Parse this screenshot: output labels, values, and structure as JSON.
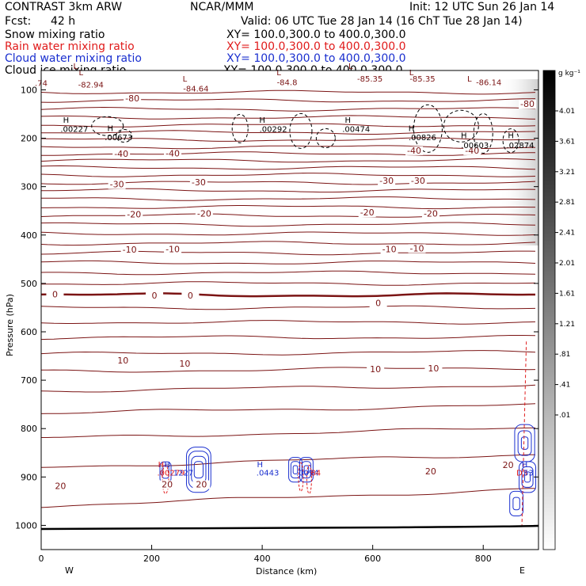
{
  "header": {
    "model": "CONTRAST  3km ARW",
    "org": "NCAR/MMM",
    "init": "Init: 12 UTC Sun 26 Jan 14",
    "fcst_label": "Fcst:",
    "fcst_value": "42 h",
    "valid": "Valid: 06 UTC Tue 28 Jan 14 (16 ChT Tue 28 Jan 14)"
  },
  "fields": [
    {
      "name": "Snow mixing ratio",
      "xy": "XY= 100.0,300.0 to 400.0,300.0",
      "color": "#000000"
    },
    {
      "name": "Rain water mixing ratio",
      "xy": "XY= 100.0,300.0 to 400.0,300.0",
      "color": "#e01b1b"
    },
    {
      "name": "Cloud water mixing ratio",
      "xy": "XY= 100.0,300.0 to 400.0,300.0",
      "color": "#1a2fcf"
    },
    {
      "name": "Cloud ice mixing ratio",
      "xy": "XY= 100.0,300.0 to 400.0,300.0",
      "color": "#000000"
    }
  ],
  "colors": {
    "temp": "#7b1414",
    "rain": "#e01b1b",
    "cloud": "#1a2fcf",
    "snow": "#000000"
  },
  "chart_data": {
    "type": "contour",
    "xlabel": "Distance (km)",
    "ylabel": "Pressure (hPa)",
    "xlim": [
      0,
      900
    ],
    "ylim": [
      1050,
      60
    ],
    "x_ticks": [
      "0",
      "200",
      "400",
      "600",
      "800"
    ],
    "y_ticks": [
      "100",
      "200",
      "300",
      "400",
      "500",
      "600",
      "700",
      "800",
      "900",
      "1000"
    ],
    "x_end_labels": {
      "left": "W",
      "right": "E"
    },
    "colorbar": {
      "unit": "g kg⁻¹",
      "labels": [
        "4.01",
        "3.61",
        "3.21",
        "2.81",
        "2.41",
        "2.01",
        "1.61",
        "1.21",
        ".81",
        ".41",
        ".01"
      ]
    },
    "temperature_contours": {
      "units": "degC",
      "labels": [
        {
          "text": "-80",
          "x": 165,
          "p": 122
        },
        {
          "text": "-80",
          "x": 880,
          "p": 134
        },
        {
          "text": "-40",
          "x": 145,
          "p": 237
        },
        {
          "text": "-40",
          "x": 238,
          "p": 236
        },
        {
          "text": "-40",
          "x": 675,
          "p": 230
        },
        {
          "text": "-40",
          "x": 780,
          "p": 230
        },
        {
          "text": "-30",
          "x": 137,
          "p": 300
        },
        {
          "text": "-30",
          "x": 285,
          "p": 296
        },
        {
          "text": "-30",
          "x": 625,
          "p": 292
        },
        {
          "text": "-30",
          "x": 682,
          "p": 292
        },
        {
          "text": "-20",
          "x": 168,
          "p": 362
        },
        {
          "text": "-20",
          "x": 295,
          "p": 360
        },
        {
          "text": "-20",
          "x": 590,
          "p": 358
        },
        {
          "text": "-20",
          "x": 705,
          "p": 360
        },
        {
          "text": "-10",
          "x": 160,
          "p": 435
        },
        {
          "text": "-10",
          "x": 238,
          "p": 434
        },
        {
          "text": "-10",
          "x": 630,
          "p": 434
        },
        {
          "text": "-10",
          "x": 680,
          "p": 432
        },
        {
          "text": "0",
          "x": 25,
          "p": 527
        },
        {
          "text": "0",
          "x": 205,
          "p": 530
        },
        {
          "text": "0",
          "x": 270,
          "p": 530
        },
        {
          "text": "0",
          "x": 610,
          "p": 545
        },
        {
          "text": "10",
          "x": 148,
          "p": 664
        },
        {
          "text": "10",
          "x": 260,
          "p": 670
        },
        {
          "text": "10",
          "x": 605,
          "p": 682
        },
        {
          "text": "10",
          "x": 710,
          "p": 680
        },
        {
          "text": "20",
          "x": 35,
          "p": 923
        },
        {
          "text": "20",
          "x": 228,
          "p": 920
        },
        {
          "text": "20",
          "x": 290,
          "p": 920
        },
        {
          "text": "20",
          "x": 705,
          "p": 893
        },
        {
          "text": "20",
          "x": 845,
          "p": 880
        }
      ]
    },
    "extrema_labels": [
      {
        "text": "L",
        "x": 62,
        "p": 57,
        "color": "#7b1414"
      },
      {
        "text": "L",
        "x": 72,
        "p": 70,
        "color": "#7b1414"
      },
      {
        "text": "L",
        "x": 260,
        "p": 83,
        "color": "#7b1414"
      },
      {
        "text": "L",
        "x": 430,
        "p": 70,
        "color": "#7b1414"
      },
      {
        "text": "L",
        "x": 560,
        "p": 57,
        "color": "#7b1414"
      },
      {
        "text": "L",
        "x": 670,
        "p": 70,
        "color": "#7b1414"
      },
      {
        "text": "L",
        "x": 775,
        "p": 83,
        "color": "#7b1414"
      },
      {
        "text": "-82.94",
        "x": 90,
        "p": 95,
        "color": "#7b1414"
      },
      {
        "text": "-84.64",
        "x": 280,
        "p": 103,
        "color": "#7b1414"
      },
      {
        "text": "-84.8",
        "x": 445,
        "p": 90,
        "color": "#7b1414"
      },
      {
        "text": "-85.35",
        "x": 595,
        "p": 83,
        "color": "#7b1414"
      },
      {
        "text": "-85.35",
        "x": 690,
        "p": 83,
        "color": "#7b1414"
      },
      {
        "text": "-86.14",
        "x": 810,
        "p": 90,
        "color": "#7b1414"
      },
      {
        "text": ".74",
        "x": 0,
        "p": 92,
        "color": "#7b1414"
      },
      {
        "text": "H",
        "x": 45,
        "p": 168,
        "color": "#000000"
      },
      {
        "text": "H",
        "x": 125,
        "p": 185,
        "color": "#000000"
      },
      {
        "text": "H",
        "x": 400,
        "p": 168,
        "color": "#000000"
      },
      {
        "text": "H",
        "x": 555,
        "p": 168,
        "color": "#000000"
      },
      {
        "text": "H",
        "x": 670,
        "p": 185,
        "color": "#000000"
      },
      {
        "text": "H",
        "x": 765,
        "p": 200,
        "color": "#000000"
      },
      {
        "text": "H",
        "x": 850,
        "p": 200,
        "color": "#000000"
      },
      {
        "text": ".00227",
        "x": 60,
        "p": 187,
        "color": "#000000"
      },
      {
        "text": ".00673",
        "x": 140,
        "p": 204,
        "color": "#000000"
      },
      {
        "text": ".00292",
        "x": 420,
        "p": 187,
        "color": "#000000"
      },
      {
        "text": ".00474",
        "x": 570,
        "p": 187,
        "color": "#000000"
      },
      {
        "text": ".00826",
        "x": 690,
        "p": 204,
        "color": "#000000"
      },
      {
        "text": ".00603",
        "x": 785,
        "p": 220,
        "color": "#000000"
      },
      {
        "text": ".02874",
        "x": 867,
        "p": 220,
        "color": "#000000"
      },
      {
        "text": "H",
        "x": 217,
        "p": 880,
        "color": "#e01b1b"
      },
      {
        "text": "H",
        "x": 228,
        "p": 880,
        "color": "#1a2fcf"
      },
      {
        "text": ".00279",
        "x": 235,
        "p": 897,
        "color": "#e01b1b"
      },
      {
        "text": ".1227",
        "x": 255,
        "p": 897,
        "color": "#1a2fcf"
      },
      {
        "text": "H",
        "x": 396,
        "p": 880,
        "color": "#1a2fcf"
      },
      {
        "text": ".0443",
        "x": 410,
        "p": 897,
        "color": "#1a2fcf"
      },
      {
        "text": ".0094",
        "x": 482,
        "p": 897,
        "color": "#1a2fcf"
      },
      {
        "text": "84",
        "x": 497,
        "p": 897,
        "color": "#e01b1b"
      },
      {
        "text": "H",
        "x": 875,
        "p": 880,
        "color": "#1a2fcf"
      },
      {
        "text": "D3",
        "x": 870,
        "p": 897,
        "color": "#e01b1b"
      },
      {
        "text": "53",
        "x": 882,
        "p": 897,
        "color": "#1a2fcf"
      }
    ]
  }
}
